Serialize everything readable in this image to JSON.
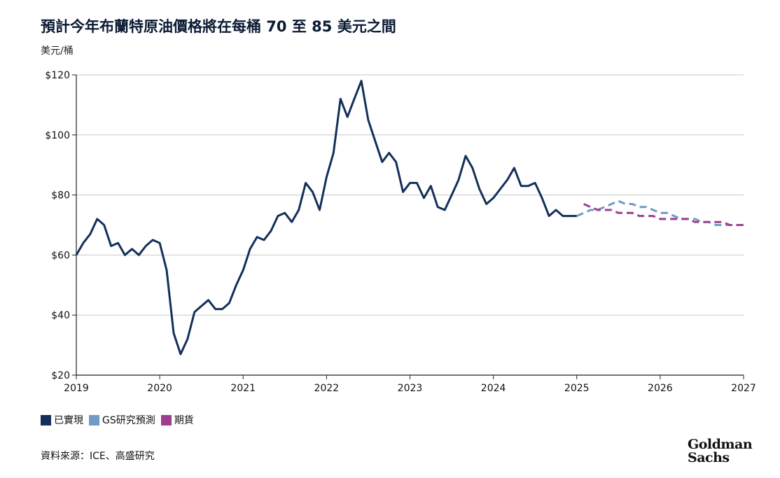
{
  "title": "預計今年布蘭特原油價格將在每桶 70 至 85 美元之間",
  "unit_label": "美元/桶",
  "source": "資料來源：ICE、高盛研究",
  "logo": {
    "line1": "Goldman",
    "line2": "Sachs"
  },
  "legend": [
    {
      "label": "已實現",
      "color": "#13305a"
    },
    {
      "label": "GS研究預測",
      "color": "#7399c6"
    },
    {
      "label": "期貨",
      "color": "#9e3f8e"
    }
  ],
  "chart_data": {
    "type": "line",
    "title": "預計今年布蘭特原油價格將在每桶 70 至 85 美元之間",
    "ylabel": "美元/桶",
    "xlim": [
      2019,
      2027
    ],
    "ylim": [
      20,
      120
    ],
    "x_ticks": [
      "2019",
      "2020",
      "2021",
      "2022",
      "2023",
      "2024",
      "2025",
      "2026",
      "2027"
    ],
    "y_ticks": [
      "$20",
      "$40",
      "$60",
      "$80",
      "$100",
      "$120"
    ],
    "y_tick_values": [
      20,
      40,
      60,
      80,
      100,
      120
    ],
    "grid": "horizontal",
    "legend_position": "bottom-left",
    "series": [
      {
        "name": "已實現",
        "color": "#13305a",
        "style": "solid",
        "x": [
          2019.0,
          2019.083,
          2019.167,
          2019.25,
          2019.333,
          2019.417,
          2019.5,
          2019.583,
          2019.667,
          2019.75,
          2019.833,
          2019.917,
          2020.0,
          2020.083,
          2020.167,
          2020.25,
          2020.333,
          2020.417,
          2020.5,
          2020.583,
          2020.667,
          2020.75,
          2020.833,
          2020.917,
          2021.0,
          2021.083,
          2021.167,
          2021.25,
          2021.333,
          2021.417,
          2021.5,
          2021.583,
          2021.667,
          2021.75,
          2021.833,
          2021.917,
          2022.0,
          2022.083,
          2022.167,
          2022.25,
          2022.333,
          2022.417,
          2022.5,
          2022.583,
          2022.667,
          2022.75,
          2022.833,
          2022.917,
          2023.0,
          2023.083,
          2023.167,
          2023.25,
          2023.333,
          2023.417,
          2023.5,
          2023.583,
          2023.667,
          2023.75,
          2023.833,
          2023.917,
          2024.0,
          2024.083,
          2024.167,
          2024.25,
          2024.333,
          2024.417,
          2024.5,
          2024.583,
          2024.667,
          2024.75,
          2024.833,
          2024.917,
          2025.0
        ],
        "values": [
          60,
          64,
          67,
          72,
          70,
          63,
          64,
          60,
          62,
          60,
          63,
          65,
          64,
          55,
          34,
          27,
          32,
          41,
          43,
          45,
          42,
          42,
          44,
          50,
          55,
          62,
          66,
          65,
          68,
          73,
          74,
          71,
          75,
          84,
          81,
          75,
          86,
          94,
          112,
          106,
          112,
          118,
          105,
          98,
          91,
          94,
          91,
          81,
          84,
          84,
          79,
          83,
          76,
          75,
          80,
          85,
          93,
          89,
          82,
          77,
          79,
          82,
          85,
          89,
          83,
          83,
          84,
          79,
          73,
          75,
          73,
          73,
          73
        ]
      },
      {
        "name": "GS研究預測",
        "color": "#7399c6",
        "style": "dashed",
        "x": [
          2025.0,
          2025.083,
          2025.167,
          2025.25,
          2025.333,
          2025.417,
          2025.5,
          2025.583,
          2025.667,
          2025.75,
          2025.833,
          2025.917,
          2026.0,
          2026.083,
          2026.167,
          2026.25,
          2026.333,
          2026.417,
          2026.5,
          2026.583,
          2026.667,
          2026.75,
          2026.833,
          2026.917,
          2027.0
        ],
        "values": [
          73,
          74,
          75,
          75,
          76,
          77,
          78,
          77,
          77,
          76,
          76,
          75,
          74,
          74,
          73,
          72,
          72,
          72,
          71,
          71,
          70,
          70,
          70,
          70,
          70
        ]
      },
      {
        "name": "期貨",
        "color": "#9e3f8e",
        "style": "dashed",
        "x": [
          2025.083,
          2025.167,
          2025.25,
          2025.333,
          2025.417,
          2025.5,
          2025.583,
          2025.667,
          2025.75,
          2025.833,
          2025.917,
          2026.0,
          2026.083,
          2026.167,
          2026.25,
          2026.333,
          2026.417,
          2026.5,
          2026.583,
          2026.667,
          2026.75,
          2026.833,
          2026.917,
          2027.0
        ],
        "values": [
          77,
          76,
          75,
          75,
          75,
          74,
          74,
          74,
          73,
          73,
          73,
          72,
          72,
          72,
          72,
          72,
          71,
          71,
          71,
          71,
          71,
          70,
          70,
          70
        ]
      }
    ]
  }
}
